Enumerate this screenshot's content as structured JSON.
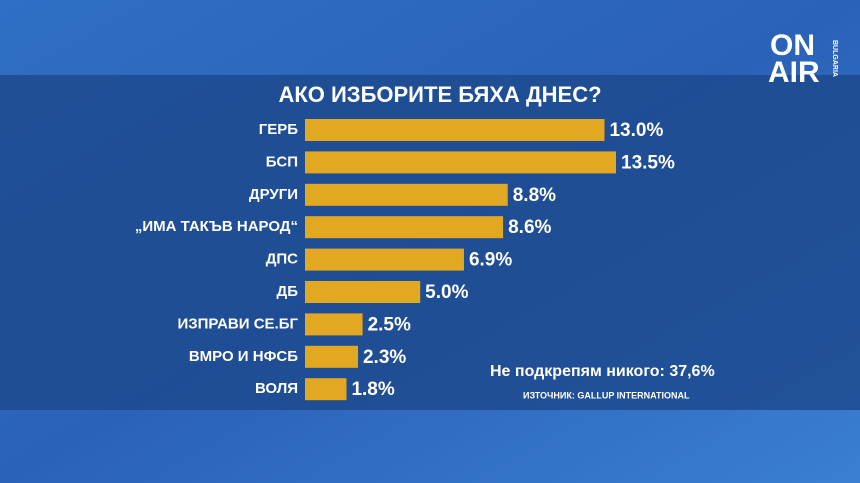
{
  "chart_data": {
    "type": "barh",
    "title": "АКО ИЗБОРИТЕ БЯХА ДНЕС?",
    "categories": [
      "ГЕРБ",
      "БСП",
      "ДРУГИ",
      "„ИМА ТАКЪВ НАРОД“",
      "ДПС",
      "ДБ",
      "ИЗПРАВИ СЕ.БГ",
      "ВМРО И НФСБ",
      "ВОЛЯ"
    ],
    "values": [
      13.0,
      13.5,
      8.8,
      8.6,
      6.9,
      5.0,
      2.5,
      2.3,
      1.8
    ],
    "value_labels": [
      "13.0%",
      "13.5%",
      "8.8%",
      "8.6%",
      "6.9%",
      "5.0%",
      "2.5%",
      "2.3%",
      "1.8%"
    ],
    "color": "#e3a822",
    "annotations": [
      "Не подкрепям никого: 37,6%",
      "ИЗТОЧНИК: GALLUP INTERNATIONAL"
    ]
  },
  "logo": {
    "line1": "ON",
    "line2": "AIR",
    "sub": "BULGARIA"
  }
}
